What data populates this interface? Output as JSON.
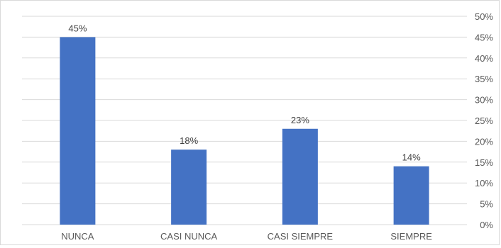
{
  "chart_data": {
    "type": "bar",
    "categories": [
      "NUNCA",
      "CASI NUNCA",
      "CASI SIEMPRE",
      "SIEMPRE"
    ],
    "values": [
      45,
      18,
      23,
      14
    ],
    "value_labels": [
      "45%",
      "18%",
      "23%",
      "14%"
    ],
    "ylim": [
      0,
      50
    ],
    "y_ticks": [
      0,
      5,
      10,
      15,
      20,
      25,
      30,
      35,
      40,
      45,
      50
    ],
    "y_tick_labels": [
      "0%",
      "5%",
      "10%",
      "15%",
      "20%",
      "25%",
      "30%",
      "35%",
      "40%",
      "45%",
      "50%"
    ],
    "y_axis_position": "right",
    "grid": true,
    "bar_color": "#4472c4",
    "title": "",
    "xlabel": "",
    "ylabel": ""
  }
}
